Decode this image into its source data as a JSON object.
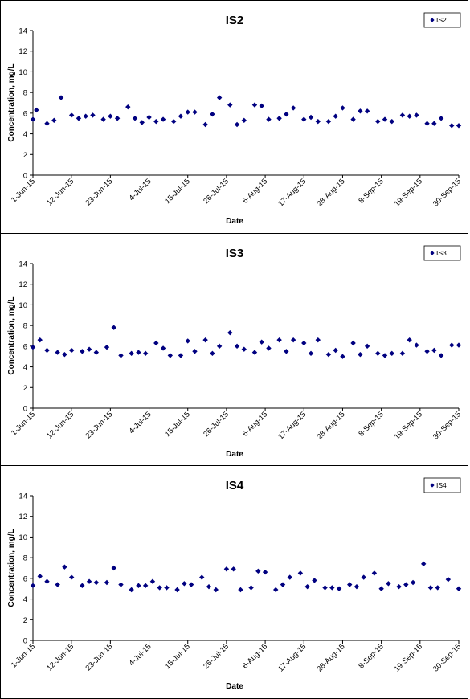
{
  "colors": {
    "marker": "#000080",
    "axis": "#000000"
  },
  "chart_data": [
    {
      "type": "scatter",
      "title": "IS2",
      "xlabel": "Date",
      "ylabel": "Concentration, mg/L",
      "legend": [
        "IS2"
      ],
      "legend_position": "top-right",
      "grid": false,
      "x_ticks": [
        "1-Jun-15",
        "12-Jun-15",
        "23-Jun-15",
        "4-Jul-15",
        "15-Jul-15",
        "26-Jul-15",
        "6-Aug-15",
        "17-Aug-15",
        "28-Aug-15",
        "8-Sep-15",
        "19-Sep-15",
        "30-Sep-15"
      ],
      "y_ticks": [
        "0",
        "2",
        "4",
        "6",
        "8",
        "10",
        "12",
        "14"
      ],
      "xlim": [
        "2015-06-01",
        "2015-09-30"
      ],
      "ylim": [
        0,
        14
      ],
      "series": [
        {
          "name": "IS2",
          "x": [
            "2015-06-01",
            "2015-06-02",
            "2015-06-05",
            "2015-06-07",
            "2015-06-09",
            "2015-06-12",
            "2015-06-14",
            "2015-06-16",
            "2015-06-18",
            "2015-06-21",
            "2015-06-23",
            "2015-06-25",
            "2015-06-28",
            "2015-06-30",
            "2015-07-02",
            "2015-07-04",
            "2015-07-06",
            "2015-07-08",
            "2015-07-11",
            "2015-07-13",
            "2015-07-15",
            "2015-07-17",
            "2015-07-20",
            "2015-07-22",
            "2015-07-24",
            "2015-07-27",
            "2015-07-29",
            "2015-07-31",
            "2015-08-03",
            "2015-08-05",
            "2015-08-07",
            "2015-08-10",
            "2015-08-12",
            "2015-08-14",
            "2015-08-17",
            "2015-08-19",
            "2015-08-21",
            "2015-08-24",
            "2015-08-26",
            "2015-08-28",
            "2015-08-31",
            "2015-09-02",
            "2015-09-04",
            "2015-09-07",
            "2015-09-09",
            "2015-09-11",
            "2015-09-14",
            "2015-09-16",
            "2015-09-18",
            "2015-09-21",
            "2015-09-23",
            "2015-09-25",
            "2015-09-28",
            "2015-09-30"
          ],
          "y": [
            5.4,
            6.3,
            5.0,
            5.3,
            7.5,
            5.8,
            5.5,
            5.7,
            5.8,
            5.4,
            5.7,
            5.5,
            6.6,
            5.5,
            5.1,
            5.6,
            5.2,
            5.4,
            5.2,
            5.7,
            6.1,
            6.1,
            4.9,
            5.9,
            7.5,
            6.8,
            4.9,
            5.3,
            6.8,
            6.7,
            5.4,
            5.5,
            5.9,
            6.5,
            5.4,
            5.6,
            5.2,
            5.2,
            5.7,
            6.5,
            5.4,
            6.2,
            6.2,
            5.2,
            5.4,
            5.2,
            5.8,
            5.7,
            5.8,
            5.0,
            5.0,
            5.5,
            4.8,
            4.8
          ]
        }
      ]
    },
    {
      "type": "scatter",
      "title": "IS3",
      "xlabel": "Date",
      "ylabel": "Concentration, mg/L",
      "legend": [
        "IS3"
      ],
      "legend_position": "top-right",
      "grid": false,
      "x_ticks": [
        "1-Jun-15",
        "12-Jun-15",
        "23-Jun-15",
        "4-Jul-15",
        "15-Jul-15",
        "26-Jul-15",
        "6-Aug-15",
        "17-Aug-15",
        "28-Aug-15",
        "8-Sep-15",
        "19-Sep-15",
        "30-Sep-15"
      ],
      "y_ticks": [
        "0",
        "2",
        "4",
        "6",
        "8",
        "10",
        "12",
        "14"
      ],
      "xlim": [
        "2015-06-01",
        "2015-09-30"
      ],
      "ylim": [
        0,
        14
      ],
      "series": [
        {
          "name": "IS3",
          "x": [
            "2015-06-01",
            "2015-06-03",
            "2015-06-05",
            "2015-06-08",
            "2015-06-10",
            "2015-06-12",
            "2015-06-15",
            "2015-06-17",
            "2015-06-19",
            "2015-06-22",
            "2015-06-24",
            "2015-06-26",
            "2015-06-29",
            "2015-07-01",
            "2015-07-03",
            "2015-07-06",
            "2015-07-08",
            "2015-07-10",
            "2015-07-13",
            "2015-07-15",
            "2015-07-17",
            "2015-07-20",
            "2015-07-22",
            "2015-07-24",
            "2015-07-27",
            "2015-07-29",
            "2015-07-31",
            "2015-08-03",
            "2015-08-05",
            "2015-08-07",
            "2015-08-10",
            "2015-08-12",
            "2015-08-14",
            "2015-08-17",
            "2015-08-19",
            "2015-08-21",
            "2015-08-24",
            "2015-08-26",
            "2015-08-28",
            "2015-08-31",
            "2015-09-02",
            "2015-09-04",
            "2015-09-07",
            "2015-09-09",
            "2015-09-11",
            "2015-09-14",
            "2015-09-16",
            "2015-09-18",
            "2015-09-21",
            "2015-09-23",
            "2015-09-25",
            "2015-09-28",
            "2015-09-30"
          ],
          "y": [
            5.9,
            6.6,
            5.6,
            5.4,
            5.2,
            5.6,
            5.5,
            5.7,
            5.4,
            5.9,
            7.8,
            5.1,
            5.3,
            5.4,
            5.3,
            6.3,
            5.8,
            5.1,
            5.1,
            6.5,
            5.5,
            6.6,
            5.3,
            6.0,
            7.3,
            6.0,
            5.7,
            5.4,
            6.4,
            5.8,
            6.6,
            5.5,
            6.6,
            6.3,
            5.3,
            6.6,
            5.2,
            5.6,
            5.0,
            6.3,
            5.2,
            6.0,
            5.3,
            5.1,
            5.3,
            5.3,
            6.6,
            6.1,
            5.5,
            5.6,
            5.1,
            6.1,
            6.1
          ]
        }
      ]
    },
    {
      "type": "scatter",
      "title": "IS4",
      "xlabel": "Date",
      "ylabel": "Concentration, mg/L",
      "legend": [
        "IS4"
      ],
      "legend_position": "top-right",
      "grid": false,
      "x_ticks": [
        "1-Jun-15",
        "12-Jun-15",
        "23-Jun-15",
        "4-Jul-15",
        "15-Jul-15",
        "26-Jul-15",
        "6-Aug-15",
        "17-Aug-15",
        "28-Aug-15",
        "8-Sep-15",
        "19-Sep-15",
        "30-Sep-15"
      ],
      "y_ticks": [
        "0",
        "2",
        "4",
        "6",
        "8",
        "10",
        "12",
        "14"
      ],
      "xlim": [
        "2015-06-01",
        "2015-09-30"
      ],
      "ylim": [
        0,
        14
      ],
      "series": [
        {
          "name": "IS4",
          "x": [
            "2015-06-01",
            "2015-06-03",
            "2015-06-05",
            "2015-06-08",
            "2015-06-10",
            "2015-06-12",
            "2015-06-15",
            "2015-06-17",
            "2015-06-19",
            "2015-06-22",
            "2015-06-24",
            "2015-06-26",
            "2015-06-29",
            "2015-07-01",
            "2015-07-03",
            "2015-07-05",
            "2015-07-07",
            "2015-07-09",
            "2015-07-12",
            "2015-07-14",
            "2015-07-16",
            "2015-07-19",
            "2015-07-21",
            "2015-07-23",
            "2015-07-26",
            "2015-07-28",
            "2015-07-30",
            "2015-08-02",
            "2015-08-04",
            "2015-08-06",
            "2015-08-09",
            "2015-08-11",
            "2015-08-13",
            "2015-08-16",
            "2015-08-18",
            "2015-08-20",
            "2015-08-23",
            "2015-08-25",
            "2015-08-27",
            "2015-08-30",
            "2015-09-01",
            "2015-09-03",
            "2015-09-06",
            "2015-09-08",
            "2015-09-10",
            "2015-09-13",
            "2015-09-15",
            "2015-09-17",
            "2015-09-20",
            "2015-09-22",
            "2015-09-24",
            "2015-09-27",
            "2015-09-30"
          ],
          "y": [
            5.3,
            6.2,
            5.7,
            5.4,
            7.1,
            6.1,
            5.3,
            5.7,
            5.6,
            5.6,
            7.0,
            5.4,
            4.9,
            5.3,
            5.3,
            5.7,
            5.1,
            5.1,
            4.9,
            5.5,
            5.4,
            6.1,
            5.2,
            4.9,
            6.9,
            6.9,
            4.9,
            5.1,
            6.7,
            6.6,
            4.9,
            5.4,
            6.1,
            6.5,
            5.2,
            5.8,
            5.1,
            5.1,
            5.0,
            5.4,
            5.2,
            6.1,
            6.5,
            5.0,
            5.5,
            5.2,
            5.4,
            5.6,
            7.4,
            5.1,
            5.1,
            5.9,
            5.0
          ]
        }
      ]
    }
  ]
}
